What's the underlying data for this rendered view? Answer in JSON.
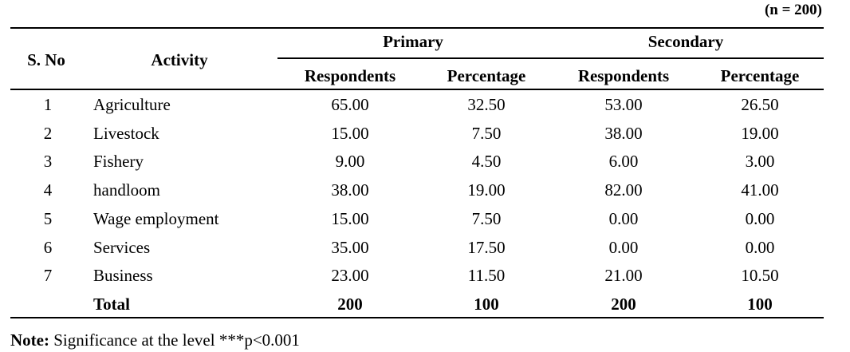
{
  "sample_note": "(n = 200)",
  "headers": {
    "sno": "S. No",
    "activity": "Activity",
    "primary": "Primary",
    "secondary": "Secondary",
    "respondents": "Respondents",
    "percentage": "Percentage"
  },
  "rows": [
    {
      "sno": "1",
      "activity": "Agriculture",
      "p_resp": "65.00",
      "p_pct": "32.50",
      "s_resp": "53.00",
      "s_pct": "26.50"
    },
    {
      "sno": "2",
      "activity": "Livestock",
      "p_resp": "15.00",
      "p_pct": "7.50",
      "s_resp": "38.00",
      "s_pct": "19.00"
    },
    {
      "sno": "3",
      "activity": "Fishery",
      "p_resp": "9.00",
      "p_pct": "4.50",
      "s_resp": "6.00",
      "s_pct": "3.00"
    },
    {
      "sno": "4",
      "activity": "handloom",
      "p_resp": "38.00",
      "p_pct": "19.00",
      "s_resp": "82.00",
      "s_pct": "41.00"
    },
    {
      "sno": "5",
      "activity": "Wage employment",
      "p_resp": "15.00",
      "p_pct": "7.50",
      "s_resp": "0.00",
      "s_pct": "0.00"
    },
    {
      "sno": "6",
      "activity": "Services",
      "p_resp": "35.00",
      "p_pct": "17.50",
      "s_resp": "0.00",
      "s_pct": "0.00"
    },
    {
      "sno": "7",
      "activity": "Business",
      "p_resp": "23.00",
      "p_pct": "11.50",
      "s_resp": "21.00",
      "s_pct": "10.50"
    }
  ],
  "total": {
    "label": "Total",
    "p_resp": "200",
    "p_pct": "100",
    "s_resp": "200",
    "s_pct": "100"
  },
  "note": {
    "label": "Note:",
    "text": " Significance at the level ***p<0.001"
  }
}
